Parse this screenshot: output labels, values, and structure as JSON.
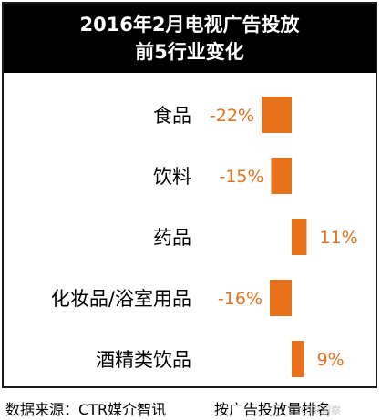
{
  "header": {
    "line1": "2016年2月电视广告投放",
    "line2": "前5行业变化"
  },
  "chart_data": {
    "type": "bar",
    "orientation": "horizontal",
    "categories": [
      "食品",
      "饮料",
      "药品",
      "化妆品/浴室用品",
      "酒精类饮品"
    ],
    "values": [
      -22,
      -15,
      11,
      -16,
      9
    ],
    "value_labels": [
      "-22%",
      "-15%",
      "11%",
      "-16%",
      "9%"
    ],
    "unit": "%",
    "title": "2016年2月电视广告投放 前5行业变化",
    "xlabel": "",
    "ylabel": "",
    "grid": false,
    "legend": "none",
    "bar_color": "#e8711c",
    "label_color": "#e8711c"
  },
  "footer": {
    "source": "数据来源：CTR媒介智讯",
    "note": "按广告投放量排名",
    "watermark": "CTR洞察"
  }
}
